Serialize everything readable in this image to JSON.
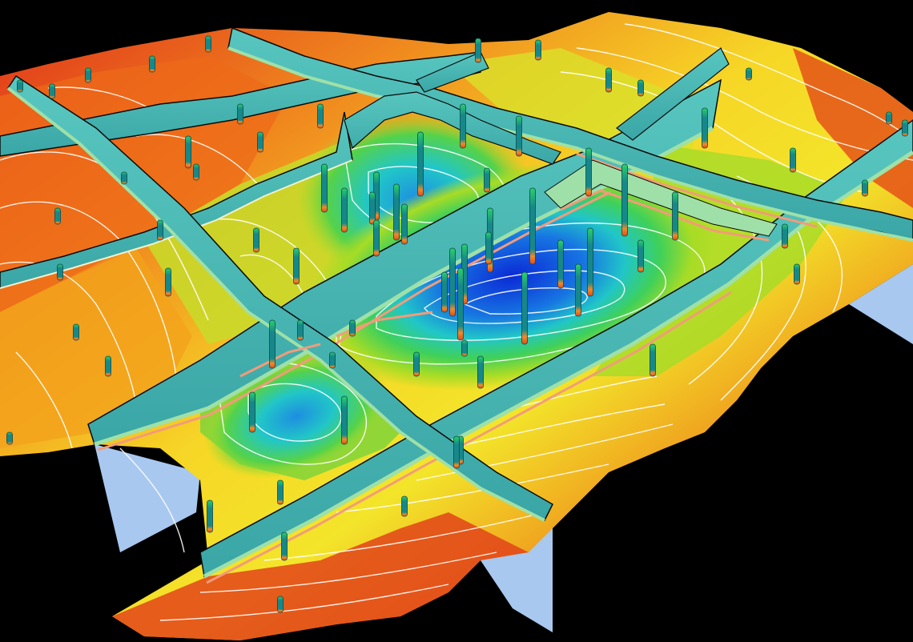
{
  "scene": {
    "type": "3d-geological-reservoir-model",
    "background_color": "#000000",
    "surface_palette": [
      "#d51d10",
      "#ee5a16",
      "#f7ac1c",
      "#f3e52a",
      "#a7dc26",
      "#3fd05a",
      "#21c6c8",
      "#1775e2",
      "#0b2ad6"
    ],
    "fault_panel_color": "#49b9b4",
    "fault_panel_light_color": "#9fe0a8",
    "horizon_band_colors": [
      "#f39b7a",
      "#f7d7a0",
      "#c9f2c0"
    ],
    "contour_line_color": "#ffffff",
    "underside_color": "#a9c8ef",
    "well_colors": [
      "#17888a",
      "#2ad06a",
      "#f08a2a"
    ]
  }
}
